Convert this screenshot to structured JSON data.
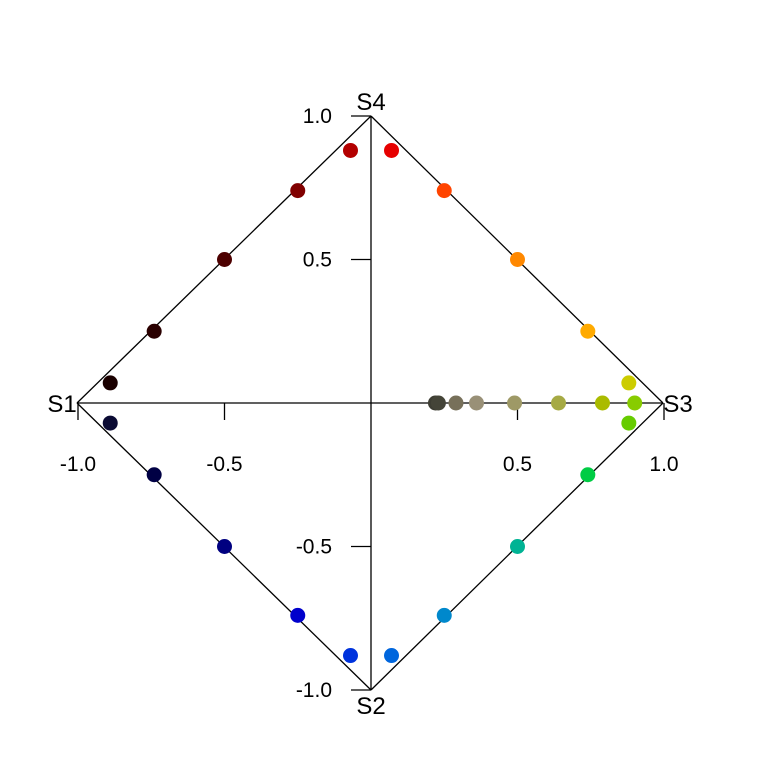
{
  "chart_data": {
    "type": "scatter",
    "xlim": [
      -1.0,
      1.0
    ],
    "ylim": [
      -1.0,
      1.0
    ],
    "corner_labels": {
      "top": "S4",
      "left": "S1",
      "right": "S3",
      "bottom": "S2"
    },
    "x_ticks": [
      {
        "value": -1.0,
        "label": "-1.0"
      },
      {
        "value": -0.5,
        "label": "-0.5"
      },
      {
        "value": 0.5,
        "label": "0.5"
      },
      {
        "value": 1.0,
        "label": "1.0"
      }
    ],
    "y_ticks": [
      {
        "value": 1.0,
        "label": "1.0"
      },
      {
        "value": 0.5,
        "label": "0.5"
      },
      {
        "value": -0.5,
        "label": "-0.5"
      },
      {
        "value": -1.0,
        "label": "-1.0"
      }
    ],
    "grid": false,
    "points": [
      {
        "x": -0.07,
        "y": 0.88,
        "color": "#b30000"
      },
      {
        "x": 0.07,
        "y": 0.88,
        "color": "#e60000"
      },
      {
        "x": -0.25,
        "y": 0.74,
        "color": "#800000"
      },
      {
        "x": 0.25,
        "y": 0.74,
        "color": "#ff4400"
      },
      {
        "x": -0.5,
        "y": 0.5,
        "color": "#4d0000"
      },
      {
        "x": 0.5,
        "y": 0.5,
        "color": "#ff8800"
      },
      {
        "x": -0.74,
        "y": 0.25,
        "color": "#2a0000"
      },
      {
        "x": 0.74,
        "y": 0.25,
        "color": "#ffaa00"
      },
      {
        "x": -0.89,
        "y": 0.07,
        "color": "#1a0000"
      },
      {
        "x": 0.88,
        "y": 0.07,
        "color": "#cccc00"
      },
      {
        "x": -0.89,
        "y": -0.07,
        "color": "#0a0a33"
      },
      {
        "x": 0.88,
        "y": -0.07,
        "color": "#66cc00"
      },
      {
        "x": -0.74,
        "y": -0.25,
        "color": "#000044"
      },
      {
        "x": 0.74,
        "y": -0.25,
        "color": "#00cc44"
      },
      {
        "x": -0.5,
        "y": -0.5,
        "color": "#000080"
      },
      {
        "x": 0.5,
        "y": -0.5,
        "color": "#00b394"
      },
      {
        "x": -0.25,
        "y": -0.74,
        "color": "#0000cc"
      },
      {
        "x": 0.25,
        "y": -0.74,
        "color": "#0088cc"
      },
      {
        "x": -0.07,
        "y": -0.88,
        "color": "#0033dd"
      },
      {
        "x": 0.07,
        "y": -0.88,
        "color": "#0066dd"
      },
      {
        "x": 0.22,
        "y": 0.0,
        "color": "#3d3d33"
      },
      {
        "x": 0.23,
        "y": 0.0,
        "color": "#444438"
      },
      {
        "x": 0.29,
        "y": 0.0,
        "color": "#77705a"
      },
      {
        "x": 0.36,
        "y": 0.0,
        "color": "#999077"
      },
      {
        "x": 0.49,
        "y": 0.0,
        "color": "#9e9966"
      },
      {
        "x": 0.64,
        "y": 0.0,
        "color": "#a6aa44"
      },
      {
        "x": 0.79,
        "y": 0.0,
        "color": "#aabb00"
      },
      {
        "x": 0.9,
        "y": 0.0,
        "color": "#88cc00"
      }
    ]
  }
}
